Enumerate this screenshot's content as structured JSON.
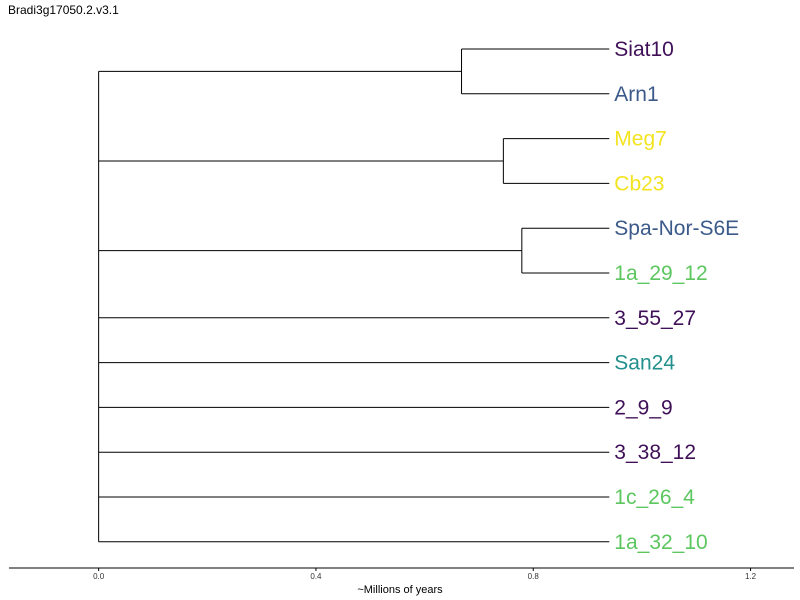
{
  "chart_data": {
    "type": "tree",
    "title": "Bradi3g17050.2.v3.1",
    "xlabel": "~Millions of years",
    "xlim": [
      -0.165,
      1.28
    ],
    "x_ticks": [
      {
        "value": 0.0,
        "label": "0.0"
      },
      {
        "value": 0.4,
        "label": "0.4"
      },
      {
        "value": 0.8,
        "label": "0.8"
      },
      {
        "value": 1.2,
        "label": "1.2"
      }
    ],
    "root_age": 0.0,
    "tip_age": 0.94,
    "clades": [
      {
        "node": 0.668,
        "tips": [
          {
            "label": "Siat10",
            "color": "#3f0f58"
          },
          {
            "label": "Arn1",
            "color": "#3b5a8a"
          }
        ]
      },
      {
        "node": 0.745,
        "tips": [
          {
            "label": "Meg7",
            "color": "#f3e420"
          },
          {
            "label": "Cb23",
            "color": "#f3e420"
          }
        ]
      },
      {
        "node": 0.779,
        "tips": [
          {
            "label": "Spa-Nor-S6E",
            "color": "#3b5a8a"
          },
          {
            "label": "1a_29_12",
            "color": "#5cc65f"
          }
        ]
      },
      {
        "tips": [
          {
            "label": "3_55_27",
            "color": "#3f0f58"
          }
        ]
      },
      {
        "tips": [
          {
            "label": "San24",
            "color": "#22908c"
          }
        ]
      },
      {
        "tips": [
          {
            "label": "2_9_9",
            "color": "#3f0f58"
          }
        ]
      },
      {
        "tips": [
          {
            "label": "3_38_12",
            "color": "#3f0f58"
          }
        ]
      },
      {
        "tips": [
          {
            "label": "1c_26_4",
            "color": "#5cc65f"
          }
        ]
      },
      {
        "tips": [
          {
            "label": "1a_32_10",
            "color": "#5cc65f"
          }
        ]
      }
    ]
  }
}
